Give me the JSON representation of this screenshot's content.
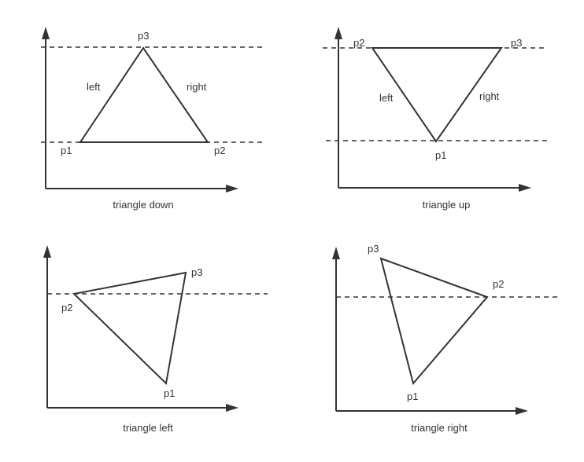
{
  "panels": [
    {
      "caption": "triangle down",
      "points": {
        "p1": "p1",
        "p2": "p2",
        "p3": "p3"
      },
      "edges": {
        "left": "left",
        "right": "right"
      }
    },
    {
      "caption": "triangle up",
      "points": {
        "p1": "p1",
        "p2": "p2",
        "p3": "p3"
      },
      "edges": {
        "left": "left",
        "right": "right"
      }
    },
    {
      "caption": "triangle left",
      "points": {
        "p1": "p1",
        "p2": "p2",
        "p3": "p3"
      }
    },
    {
      "caption": "triangle right",
      "points": {
        "p1": "p1",
        "p2": "p2",
        "p3": "p3"
      }
    }
  ]
}
